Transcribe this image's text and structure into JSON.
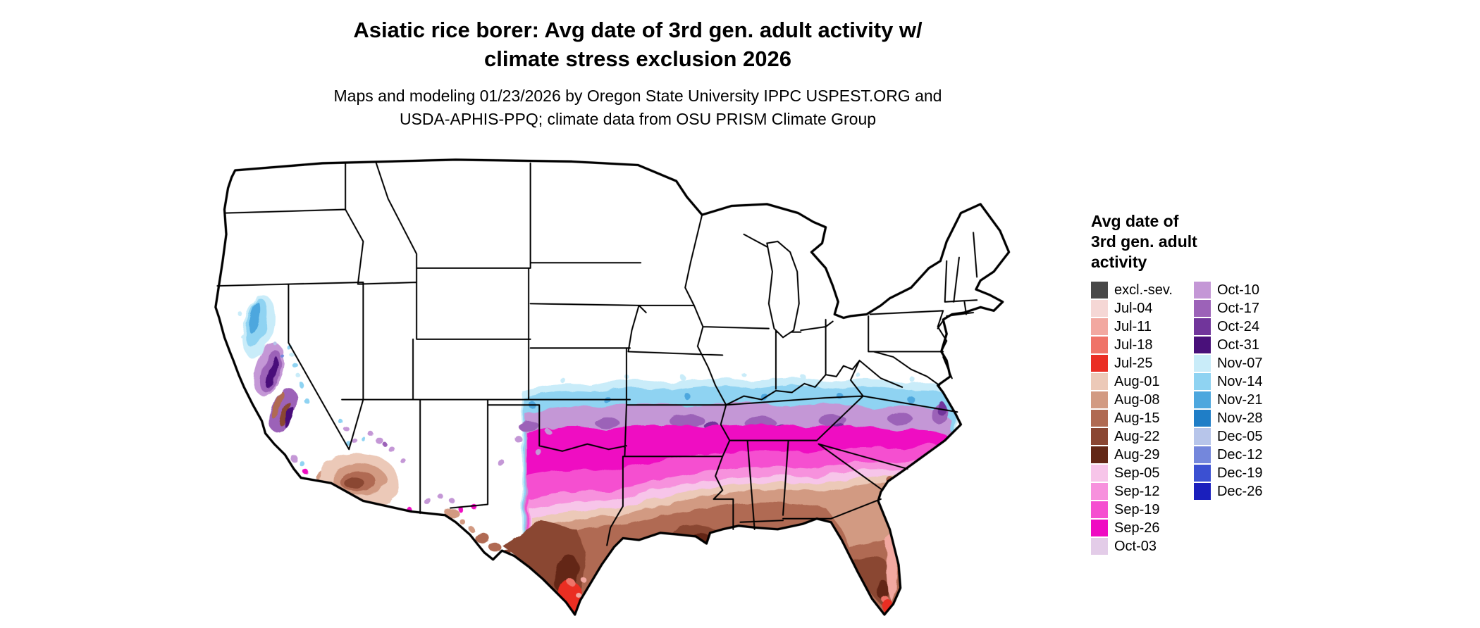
{
  "title": {
    "line1": "Asiatic rice borer: Avg date of 3rd gen. adult activity w/",
    "line2": "climate stress exclusion 2026"
  },
  "subtitle": {
    "line1": "Maps and modeling 01/23/2026 by Oregon State University IPPC USPEST.ORG and",
    "line2": "USDA-APHIS-PPQ; climate data from OSU PRISM Climate Group"
  },
  "legend": {
    "title_lines": [
      "Avg date of",
      "3rd gen. adult",
      "activity"
    ],
    "column1": [
      {
        "label": "excl.-sev.",
        "color": "#484848"
      },
      {
        "label": "Jul-04",
        "color": "#f5d7d5"
      },
      {
        "label": "Jul-11",
        "color": "#f2a8a0"
      },
      {
        "label": "Jul-18",
        "color": "#ef7368"
      },
      {
        "label": "Jul-25",
        "color": "#ea2e24"
      },
      {
        "label": "Aug-01",
        "color": "#ecc9b8"
      },
      {
        "label": "Aug-08",
        "color": "#d29a82"
      },
      {
        "label": "Aug-15",
        "color": "#b06a52"
      },
      {
        "label": "Aug-22",
        "color": "#8a4632"
      },
      {
        "label": "Aug-29",
        "color": "#632716"
      },
      {
        "label": "Sep-05",
        "color": "#f7c5e9"
      },
      {
        "label": "Sep-12",
        "color": "#f791dd"
      },
      {
        "label": "Sep-19",
        "color": "#f54fd0"
      },
      {
        "label": "Sep-26",
        "color": "#ef0ac2"
      },
      {
        "label": "Oct-03",
        "color": "#e3cce8"
      }
    ],
    "column2": [
      {
        "label": "Oct-10",
        "color": "#c497d6"
      },
      {
        "label": "Oct-17",
        "color": "#9c62b8"
      },
      {
        "label": "Oct-24",
        "color": "#71359b"
      },
      {
        "label": "Oct-31",
        "color": "#49107a"
      },
      {
        "label": "Nov-07",
        "color": "#c9ecf9"
      },
      {
        "label": "Nov-14",
        "color": "#8fd3f2"
      },
      {
        "label": "Nov-21",
        "color": "#4da7de"
      },
      {
        "label": "Nov-28",
        "color": "#1f7ec7"
      },
      {
        "label": "Dec-05",
        "color": "#b7c5ea"
      },
      {
        "label": "Dec-12",
        "color": "#7487dc"
      },
      {
        "label": "Dec-19",
        "color": "#3b50d2"
      },
      {
        "label": "Dec-26",
        "color": "#1a1fbd"
      }
    ]
  }
}
